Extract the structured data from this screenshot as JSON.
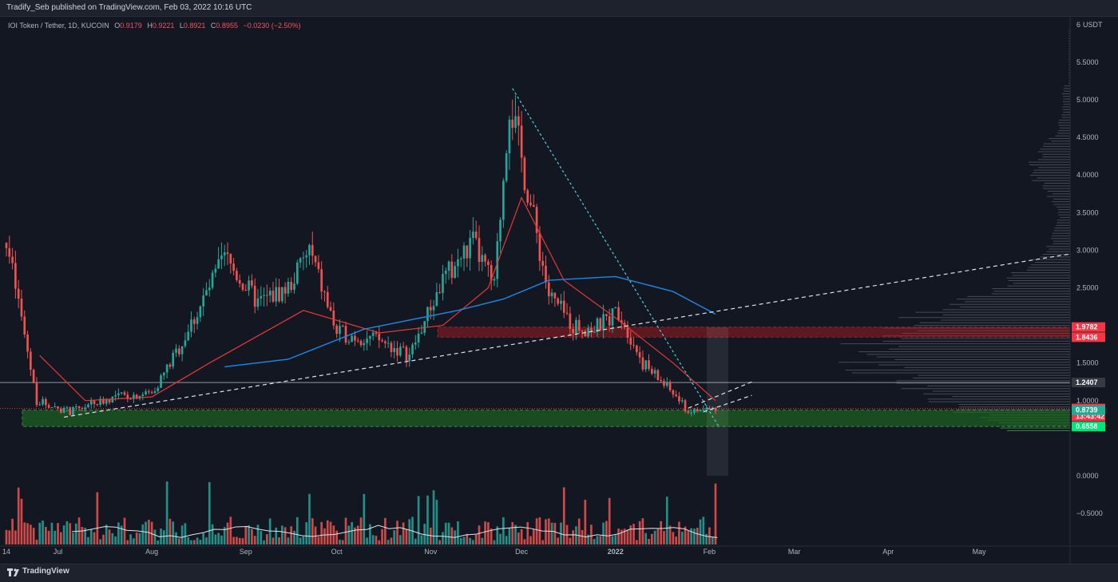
{
  "header": {
    "publisher": "Tradify_Seb published on TradingView.com, Feb 03, 2022 10:16 UTC"
  },
  "legend": {
    "symbol": "IOI Token / Tether, 1D, KUCOIN",
    "open_label": "O",
    "open": "0.9179",
    "high_label": "H",
    "high": "0.9221",
    "low_label": "L",
    "low": "0.8921",
    "close_label": "C",
    "close": "0.8955",
    "change": "−0.0230 (−2.50%)"
  },
  "footer": {
    "brand": "TradingView"
  },
  "colors": {
    "background": "#131722",
    "up": "#26a69a",
    "down": "#ef5350",
    "ma_short": "#e53935",
    "ma_long": "#1e88e5",
    "support_zone": "#1b5e20",
    "resistance_zone": "#b71c1c"
  },
  "chart_data": {
    "type": "candlestick",
    "currency": "USDT",
    "y_axis": {
      "ticks": [
        "6",
        "5.5000",
        "5.0000",
        "4.5000",
        "4.0000",
        "3.5000",
        "3.0000",
        "2.5000",
        "2.0000",
        "1.5000",
        "1.0000",
        "0.0000",
        "−0.5000"
      ],
      "tick_values": [
        6,
        5.5,
        5,
        4.5,
        4,
        3.5,
        3,
        2.5,
        2,
        1.5,
        1,
        0,
        -0.5
      ],
      "unit_label": "USDT"
    },
    "x_axis": {
      "ticks": [
        "14",
        "Jul",
        "Aug",
        "Sep",
        "Oct",
        "Nov",
        "Dec",
        "2022",
        "Feb",
        "Mar",
        "Apr",
        "May"
      ],
      "tick_dates": [
        "2021-06-14",
        "2021-07-01",
        "2021-08-01",
        "2021-09-01",
        "2021-10-01",
        "2021-11-01",
        "2021-12-01",
        "2022-01-01",
        "2022-02-01",
        "2022-03-01",
        "2022-04-01",
        "2022-05-01"
      ]
    },
    "price_tags": [
      {
        "label": "1.9782",
        "value": 1.9782,
        "color": "#f23645"
      },
      {
        "label": "1.8436",
        "value": 1.8436,
        "color": "#f23645"
      },
      {
        "label": "1.2407",
        "value": 1.2407,
        "color": "#363a45"
      },
      {
        "label": "0.8955",
        "value": 0.8955,
        "color": "#f23645"
      },
      {
        "label": "13:43:42",
        "value": 0.79,
        "color": "#f23645"
      },
      {
        "label": "0.8739",
        "value": 0.8739,
        "color": "#22ab94"
      },
      {
        "label": "0.6558",
        "value": 0.6558,
        "color": "#00e676"
      }
    ],
    "horizontal_line": 1.2407,
    "support_zone": [
      0.6558,
      0.8739
    ],
    "resistance_zone": [
      1.8436,
      1.9782
    ],
    "price_path": [
      {
        "x": "2021-06-14",
        "y": 3.1
      },
      {
        "x": "2021-06-18",
        "y": 2.3
      },
      {
        "x": "2021-06-24",
        "y": 1.0
      },
      {
        "x": "2021-07-05",
        "y": 0.85
      },
      {
        "x": "2021-07-12",
        "y": 0.95
      },
      {
        "x": "2021-07-20",
        "y": 1.05
      },
      {
        "x": "2021-08-01",
        "y": 1.1
      },
      {
        "x": "2021-08-10",
        "y": 1.7
      },
      {
        "x": "2021-08-25",
        "y": 2.9
      },
      {
        "x": "2021-09-05",
        "y": 2.3
      },
      {
        "x": "2021-09-15",
        "y": 2.5
      },
      {
        "x": "2021-09-22",
        "y": 3.0
      },
      {
        "x": "2021-10-01",
        "y": 1.9
      },
      {
        "x": "2021-10-15",
        "y": 1.8
      },
      {
        "x": "2021-10-25",
        "y": 1.6
      },
      {
        "x": "2021-11-05",
        "y": 2.6
      },
      {
        "x": "2021-11-15",
        "y": 3.1
      },
      {
        "x": "2021-11-22",
        "y": 2.5
      },
      {
        "x": "2021-11-27",
        "y": 5.0
      },
      {
        "x": "2021-12-03",
        "y": 3.8
      },
      {
        "x": "2021-12-10",
        "y": 2.4
      },
      {
        "x": "2021-12-18",
        "y": 2.0
      },
      {
        "x": "2021-12-25",
        "y": 1.95
      },
      {
        "x": "2022-01-02",
        "y": 2.2
      },
      {
        "x": "2022-01-10",
        "y": 1.5
      },
      {
        "x": "2022-01-20",
        "y": 1.1
      },
      {
        "x": "2022-01-25",
        "y": 0.85
      },
      {
        "x": "2022-02-03",
        "y": 0.8955
      }
    ],
    "ma_short_path": [
      {
        "x": "2021-06-25",
        "y": 1.6
      },
      {
        "x": "2021-07-10",
        "y": 1.0
      },
      {
        "x": "2021-08-01",
        "y": 1.05
      },
      {
        "x": "2021-08-20",
        "y": 1.5
      },
      {
        "x": "2021-09-20",
        "y": 2.2
      },
      {
        "x": "2021-10-15",
        "y": 1.9
      },
      {
        "x": "2021-11-05",
        "y": 2.0
      },
      {
        "x": "2021-11-20",
        "y": 2.5
      },
      {
        "x": "2021-12-01",
        "y": 3.7
      },
      {
        "x": "2021-12-15",
        "y": 2.6
      },
      {
        "x": "2022-01-01",
        "y": 2.1
      },
      {
        "x": "2022-01-20",
        "y": 1.5
      },
      {
        "x": "2022-02-03",
        "y": 1.0
      }
    ],
    "ma_long_path": [
      {
        "x": "2021-08-25",
        "y": 1.45
      },
      {
        "x": "2021-09-15",
        "y": 1.55
      },
      {
        "x": "2021-10-10",
        "y": 1.95
      },
      {
        "x": "2021-11-10",
        "y": 2.2
      },
      {
        "x": "2021-11-25",
        "y": 2.35
      },
      {
        "x": "2021-12-10",
        "y": 2.6
      },
      {
        "x": "2022-01-01",
        "y": 2.65
      },
      {
        "x": "2022-01-20",
        "y": 2.45
      },
      {
        "x": "2022-02-03",
        "y": 2.15
      }
    ],
    "trendlines": [
      {
        "style": "dashed-white",
        "from": {
          "x": "2021-07-03",
          "y": 0.78
        },
        "to": {
          "x": "2022-05-31",
          "y": 2.95
        }
      },
      {
        "style": "dotted-cyan",
        "from": {
          "x": "2021-11-28",
          "y": 5.15
        },
        "to": {
          "x": "2022-02-04",
          "y": 0.66
        }
      },
      {
        "style": "dashed-white",
        "from": {
          "x": "2022-01-25",
          "y": 0.9
        },
        "to": {
          "x": "2022-02-15",
          "y": 1.25
        }
      },
      {
        "style": "dashed-white",
        "from": {
          "x": "2022-01-30",
          "y": 0.85
        },
        "to": {
          "x": "2022-02-15",
          "y": 1.07
        }
      }
    ],
    "volume_scale_max": 100
  }
}
